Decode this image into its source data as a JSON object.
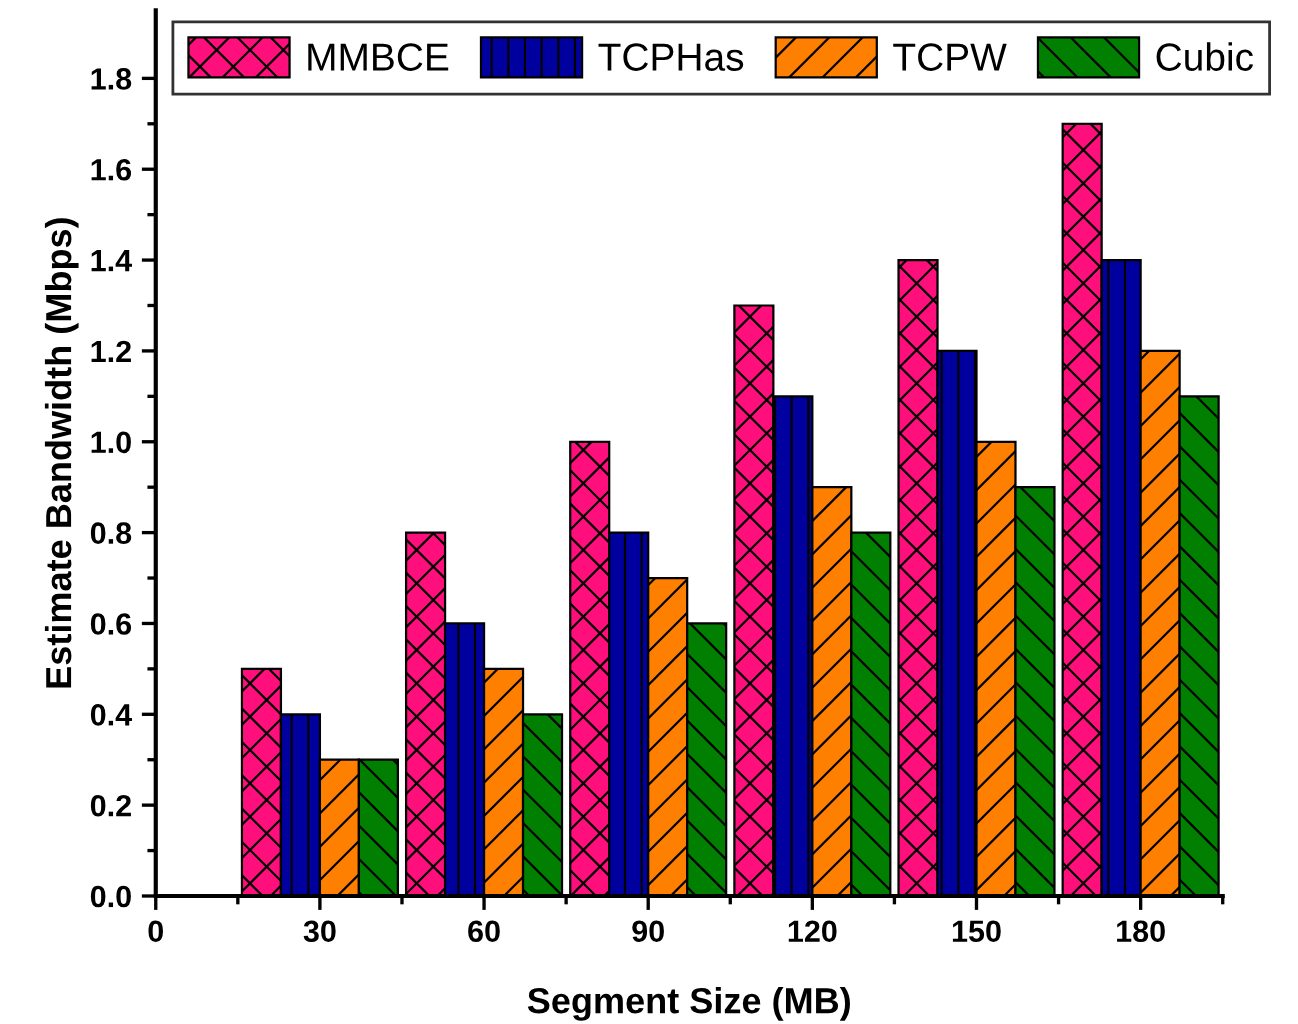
{
  "chart_data": {
    "type": "bar",
    "xlabel": "Segment Size (MB)",
    "ylabel": "Estimate Bandwidth (Mbps)",
    "x": [
      30,
      60,
      90,
      120,
      150,
      180
    ],
    "series": [
      {
        "name": "MMBCE",
        "color": "#ff0f7b",
        "values": [
          0.5,
          0.8,
          1.0,
          1.3,
          1.4,
          1.7
        ]
      },
      {
        "name": "TCPHas",
        "color": "#00009f",
        "values": [
          0.4,
          0.6,
          0.8,
          1.1,
          1.2,
          1.4
        ]
      },
      {
        "name": "TCPW",
        "color": "#ff8000",
        "values": [
          0.3,
          0.5,
          0.7,
          0.9,
          1.0,
          1.2
        ]
      },
      {
        "name": "Cubic",
        "color": "#007f00",
        "values": [
          0.3,
          0.4,
          0.6,
          0.8,
          0.9,
          1.1
        ]
      }
    ],
    "xlim": [
      0,
      195
    ],
    "xticks": [
      0,
      30,
      60,
      90,
      120,
      150,
      180
    ],
    "ylim": [
      0,
      1.95
    ],
    "yticks": [
      {
        "value": 0,
        "label": "0.0"
      },
      {
        "value": 0.2,
        "label": "0.2"
      },
      {
        "value": 0.4,
        "label": "0.4"
      },
      {
        "value": 0.6,
        "label": "0.6"
      },
      {
        "value": 0.8,
        "label": "0.8"
      },
      {
        "value": 1.0,
        "label": "1.0"
      },
      {
        "value": 1.2,
        "label": "1.2"
      },
      {
        "value": 1.4,
        "label": "1.4"
      },
      {
        "value": 1.6,
        "label": "1.6"
      },
      {
        "value": 1.8,
        "label": "1.8"
      }
    ],
    "legend": "top",
    "grid": false
  }
}
